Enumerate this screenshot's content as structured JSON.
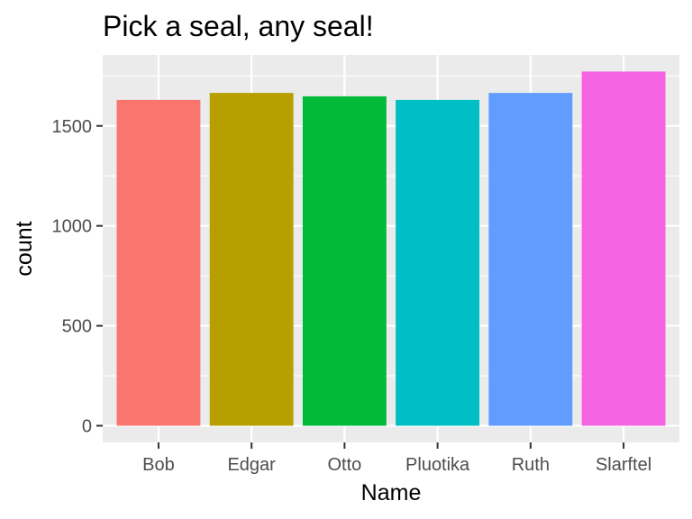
{
  "chart_data": {
    "type": "bar",
    "title": "Pick a seal, any seal!",
    "xlabel": "Name",
    "ylabel": "count",
    "categories": [
      "Bob",
      "Edgar",
      "Otto",
      "Pluotika",
      "Ruth",
      "Slarftel"
    ],
    "values": [
      1630,
      1665,
      1648,
      1630,
      1665,
      1772
    ],
    "colors": [
      "#F8766D",
      "#B79F00",
      "#00BA38",
      "#00BFC4",
      "#619CFF",
      "#F564E3"
    ],
    "ylim": [
      0,
      1855
    ],
    "yticks": [
      0,
      500,
      1000,
      1500
    ],
    "ytick_labels": [
      "0",
      "500",
      "1000",
      "1500"
    ],
    "grid": true,
    "legend": "none",
    "panel_background": "#EBEBEB",
    "grid_color": "#FFFFFF"
  }
}
